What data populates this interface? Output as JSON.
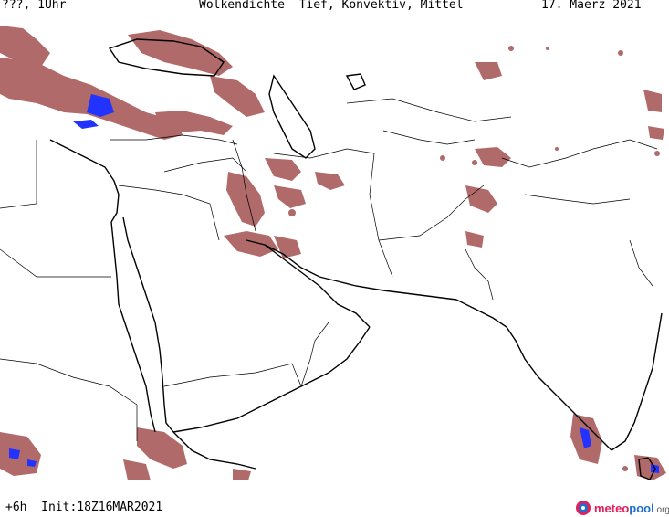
{
  "header": {
    "left": "???, 1Uhr",
    "center": "Wolkendichte  Tief, Konvektiv, Mittel",
    "right": "17. Maerz 2021"
  },
  "footer": {
    "run_info": "+6h  Init:18Z16MAR2021",
    "brand_a": "meteo",
    "brand_b": "pool",
    "brand_c": ".org"
  },
  "map": {
    "region": "Middle East / South Asia",
    "layer": "cloud density (low, convective, mid)",
    "colors": {
      "cloud": "#a85a5a",
      "cloud_dense": "#8b3a3a",
      "core": "#2233ff",
      "coast": "#000000",
      "border": "#000000"
    }
  }
}
